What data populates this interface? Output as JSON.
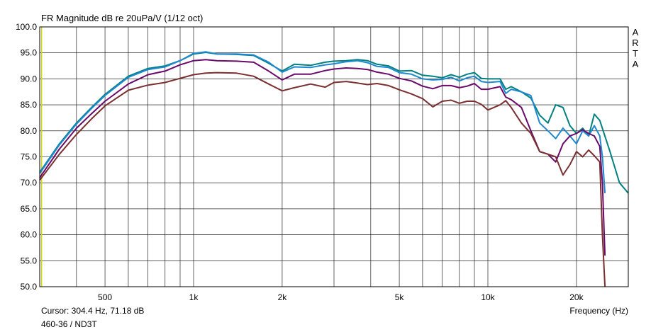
{
  "chart_data": {
    "type": "line",
    "title": "FR Magnitude dB re 20uPa/V (1/12 oct)",
    "cursor_readout": "Cursor: 304.4 Hz, 71.18 dB",
    "description": "460-36 / ND3T",
    "xlabel": "Frequency (Hz)",
    "ylabel": "",
    "brand_letters": [
      "A",
      "R",
      "T",
      "A"
    ],
    "x_scale": "log",
    "xlim": [
      300,
      30000
    ],
    "ylim": [
      50,
      100
    ],
    "grid": true,
    "legend": "none",
    "x_ticks": [
      500,
      1000,
      2000,
      5000,
      10000,
      20000
    ],
    "x_tick_labels": [
      "500",
      "1k",
      "2k",
      "5k",
      "10k",
      "20k"
    ],
    "y_ticks": [
      50,
      55,
      60,
      65,
      70,
      75,
      80,
      85,
      90,
      95,
      100
    ],
    "y_tick_labels": [
      "50.0",
      "55.0",
      "60.0",
      "65.0",
      "70.0",
      "75.0",
      "80.0",
      "85.0",
      "90.0",
      "95.0",
      "100.0"
    ],
    "cursor_marker": {
      "x": 304.4,
      "color": "#d8d800"
    },
    "series": [
      {
        "color": "#008080",
        "x": [
          300,
          350,
          400,
          450,
          500,
          600,
          700,
          800,
          900,
          1000,
          1100,
          1200,
          1400,
          1600,
          1800,
          2000,
          2200,
          2500,
          2800,
          3000,
          3300,
          3600,
          3900,
          4200,
          4600,
          5000,
          5500,
          6000,
          6500,
          7000,
          7500,
          8000,
          8500,
          9000,
          9500,
          10000,
          11000,
          11500,
          12000,
          13000,
          14000,
          15000,
          16000,
          17000,
          18000,
          19000,
          20000,
          21000,
          22000,
          23000,
          24000,
          26000,
          28000,
          30000
        ],
        "y": [
          72,
          77.5,
          81.5,
          84.5,
          87,
          90.5,
          92,
          92.5,
          93.5,
          94.8,
          95.1,
          94.8,
          94.7,
          94.5,
          93,
          91.5,
          92.8,
          92.6,
          93.2,
          93.4,
          93.5,
          93.7,
          93.5,
          92.8,
          92.5,
          91.5,
          91.6,
          90.7,
          90.5,
          90.2,
          90.8,
          90.3,
          90.9,
          91.2,
          90.1,
          90,
          90,
          88,
          88.5,
          87.5,
          86.3,
          83,
          81.5,
          85,
          84.5,
          81,
          79.5,
          80.5,
          79,
          83.2,
          82,
          76,
          70,
          68
        ]
      },
      {
        "color": "#1e88d0",
        "x": [
          300,
          350,
          400,
          450,
          500,
          600,
          700,
          800,
          900,
          1000,
          1100,
          1200,
          1400,
          1600,
          1800,
          2000,
          2200,
          2500,
          2800,
          3000,
          3300,
          3600,
          3900,
          4200,
          4600,
          5000,
          5500,
          6000,
          6500,
          7000,
          7500,
          8000,
          8500,
          9000,
          9500,
          10000,
          11000,
          11500,
          12000,
          13000,
          14000,
          15000,
          16000,
          17000,
          18000,
          19000,
          20000,
          21000,
          22000,
          23000,
          24000,
          24500,
          25000
        ],
        "y": [
          71.8,
          77.3,
          81.3,
          84.3,
          86.8,
          90.3,
          91.8,
          92.3,
          93.5,
          94.9,
          95.2,
          94.8,
          94.8,
          94.6,
          93.2,
          91.3,
          92.3,
          92.2,
          92.7,
          92.9,
          93.3,
          93.5,
          93.1,
          92.4,
          92.2,
          91.2,
          90.9,
          90,
          89.8,
          89.9,
          90.3,
          89.6,
          90.2,
          90.5,
          89.5,
          89.3,
          89.5,
          87.2,
          88,
          87.5,
          86.8,
          81.5,
          80,
          78.5,
          80.5,
          79,
          77.5,
          80,
          79,
          81,
          79,
          75,
          68
        ]
      },
      {
        "color": "#6a0a6a",
        "x": [
          300,
          350,
          400,
          450,
          500,
          600,
          700,
          800,
          900,
          1000,
          1100,
          1200,
          1400,
          1600,
          1800,
          2000,
          2200,
          2500,
          2800,
          3000,
          3300,
          3600,
          3900,
          4200,
          4600,
          5000,
          5500,
          6000,
          6500,
          7000,
          7500,
          8000,
          8500,
          9000,
          9500,
          10000,
          11000,
          11500,
          12000,
          13000,
          14000,
          15000,
          16000,
          17000,
          18000,
          19000,
          20000,
          21000,
          22000,
          23000,
          24000,
          24500,
          25000
        ],
        "y": [
          71,
          76.5,
          80.5,
          83.3,
          85.7,
          89,
          90.8,
          91.5,
          92.7,
          93.5,
          93.7,
          93.5,
          93.4,
          93.2,
          91.5,
          89.8,
          90.9,
          90.9,
          91.6,
          91.9,
          92.1,
          92,
          91.8,
          91.3,
          90.9,
          90.1,
          89.6,
          88.6,
          88.1,
          88.7,
          88.7,
          88.3,
          88.6,
          89.1,
          88,
          88,
          88.5,
          86.5,
          86,
          84.5,
          80,
          76,
          75.5,
          74,
          77.5,
          79,
          79.5,
          80.2,
          79.5,
          79,
          77,
          70,
          56
        ]
      },
      {
        "color": "#7a3030",
        "x": [
          300,
          350,
          400,
          450,
          500,
          600,
          700,
          800,
          900,
          1000,
          1100,
          1200,
          1400,
          1600,
          1800,
          2000,
          2200,
          2500,
          2800,
          3000,
          3300,
          3600,
          3900,
          4200,
          4600,
          5000,
          5500,
          6000,
          6500,
          7000,
          7500,
          8000,
          8500,
          9000,
          9500,
          10000,
          11000,
          11500,
          12000,
          13000,
          14000,
          15000,
          16000,
          17000,
          18000,
          19000,
          20000,
          21000,
          22000,
          23000,
          24000,
          24500,
          25000
        ],
        "y": [
          70.5,
          75.5,
          79.3,
          82.3,
          84.8,
          87.8,
          88.8,
          89.3,
          90.1,
          90.8,
          91.1,
          91.2,
          91.1,
          90.5,
          89,
          87.7,
          88.3,
          89,
          88.4,
          89.3,
          89.5,
          89.2,
          88.9,
          89.1,
          88.7,
          87.9,
          87.1,
          86.2,
          84.6,
          85.7,
          85.9,
          85.3,
          85.7,
          85.7,
          85.1,
          84,
          85,
          85.8,
          84.5,
          81.5,
          79.5,
          76,
          75.5,
          75,
          71.5,
          73.5,
          76,
          75,
          76.3,
          75.2,
          74,
          60,
          50
        ]
      }
    ]
  }
}
